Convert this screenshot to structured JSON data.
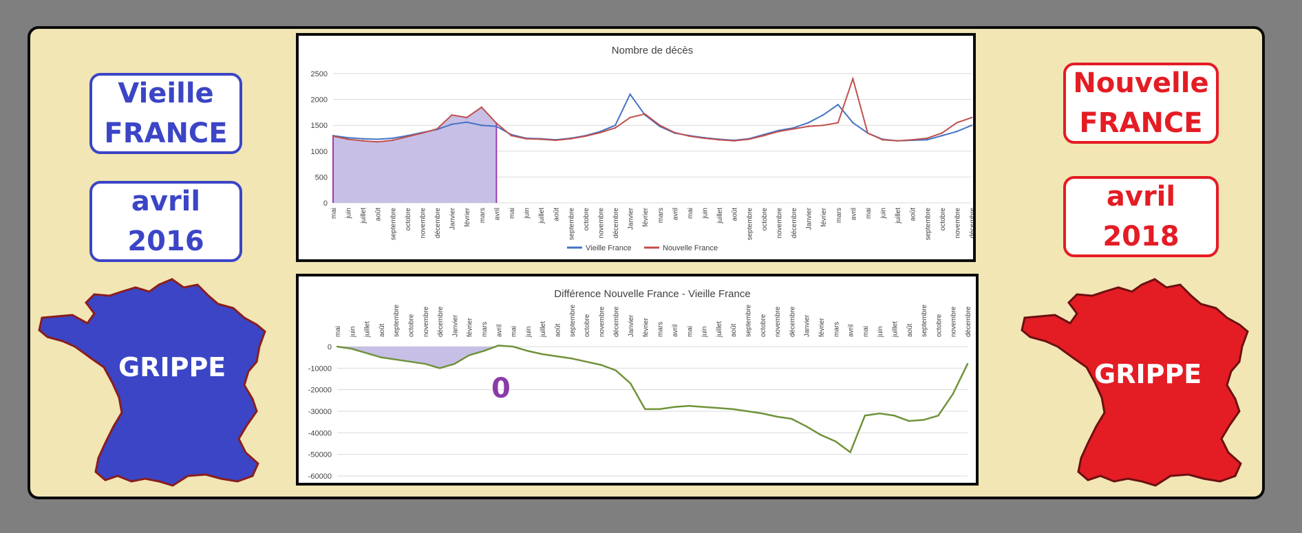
{
  "left_panel": {
    "title_line1": "Vieille",
    "title_line2": "FRANCE",
    "date_line1": "avril",
    "date_line2": "2016",
    "map_label": "GRIPPE"
  },
  "right_panel": {
    "title_line1": "Nouvelle",
    "title_line2": "FRANCE",
    "date_line1": "avril",
    "date_line2": "2018",
    "map_label": "GRIPPE"
  },
  "colors": {
    "background": "#7f7f7f",
    "panel": "#f1e6b4",
    "vieille": "#3b45c6",
    "nouvelle": "#e41c24",
    "series_blue": "#4472c4",
    "series_red": "#c0504d",
    "shade": "#c7bfe6",
    "diff_line": "#70923a",
    "marker": "#9b3bb0"
  },
  "zero_annotation": "0",
  "chart_data": [
    {
      "type": "line",
      "title": "Nombre de décès",
      "xlabel": "",
      "ylabel": "",
      "ylim": [
        0,
        2500
      ],
      "yticks": [
        "0",
        "500",
        "1000",
        "1500",
        "2000",
        "2500"
      ],
      "categories": [
        "mai",
        "juin",
        "juillet",
        "août",
        "septembre",
        "octobre",
        "novembre",
        "décembre",
        "Janvier",
        "février",
        "mars",
        "avril",
        "mai",
        "juin",
        "juillet",
        "août",
        "septembre",
        "octobre",
        "novembre",
        "décembre",
        "Janvier",
        "février",
        "mars",
        "avril",
        "mai",
        "juin",
        "juillet",
        "août",
        "septembre",
        "octobre",
        "novembre",
        "décembre",
        "Janvier",
        "février",
        "mars",
        "avril",
        "mai",
        "juin",
        "juillet",
        "août",
        "septembre",
        "octobre",
        "novembre",
        "décembre"
      ],
      "grid": true,
      "legend_position": "bottom",
      "series": [
        {
          "name": "Vieille France",
          "color": "#4472c4",
          "values": [
            1300,
            1260,
            1240,
            1230,
            1250,
            1300,
            1360,
            1420,
            1520,
            1560,
            1500,
            1480,
            1320,
            1250,
            1240,
            1220,
            1250,
            1300,
            1380,
            1500,
            2100,
            1700,
            1480,
            1350,
            1300,
            1260,
            1230,
            1210,
            1240,
            1320,
            1400,
            1450,
            1550,
            1700,
            1900,
            1550,
            1350,
            1230,
            1200,
            1210,
            1220,
            1300,
            1380,
            1500
          ]
        },
        {
          "name": "Nouvelle France",
          "color": "#c0504d",
          "values": [
            1290,
            1230,
            1200,
            1180,
            1210,
            1280,
            1350,
            1430,
            1700,
            1650,
            1850,
            1540,
            1300,
            1240,
            1230,
            1210,
            1240,
            1290,
            1360,
            1450,
            1650,
            1720,
            1500,
            1360,
            1290,
            1250,
            1220,
            1200,
            1230,
            1300,
            1380,
            1430,
            1480,
            1500,
            1550,
            2400,
            1350,
            1220,
            1200,
            1220,
            1250,
            1350,
            1550,
            1650
          ]
        }
      ],
      "shaded_region": {
        "from": "mai",
        "to": "avril",
        "series": "Nouvelle France"
      }
    },
    {
      "type": "line",
      "title": "Différence Nouvelle France - Vieille France",
      "xlabel": "",
      "ylabel": "",
      "ylim": [
        -60000,
        0
      ],
      "yticks": [
        "0",
        "-10000",
        "-20000",
        "-30000",
        "-40000",
        "-50000",
        "-60000"
      ],
      "categories": [
        "mai",
        "juin",
        "juillet",
        "août",
        "septembre",
        "octobre",
        "novembre",
        "décembre",
        "Janvier",
        "février",
        "mars",
        "avril",
        "mai",
        "juin",
        "juillet",
        "août",
        "septembre",
        "octobre",
        "novembre",
        "décembre",
        "Janvier",
        "février",
        "mars",
        "avril",
        "mai",
        "juin",
        "juillet",
        "août",
        "septembre",
        "octobre",
        "novembre",
        "décembre",
        "Janvier",
        "février",
        "mars",
        "avril",
        "mai",
        "juin",
        "juillet",
        "août",
        "septembre",
        "octobre",
        "novembre",
        "décembre"
      ],
      "grid": true,
      "series": [
        {
          "name": "Différence",
          "color": "#70923a",
          "values": [
            0,
            -1000,
            -3000,
            -5000,
            -6000,
            -7000,
            -8000,
            -10000,
            -8000,
            -4000,
            -2000,
            500,
            0,
            -2000,
            -3500,
            -4500,
            -5500,
            -7000,
            -8500,
            -11000,
            -17000,
            -29000,
            -29000,
            -28000,
            -27500,
            -28000,
            -28500,
            -29000,
            -30000,
            -31000,
            -32500,
            -33500,
            -37000,
            -41000,
            -44000,
            -49000,
            -32000,
            -31000,
            -32000,
            -34500,
            -34000,
            -32000,
            -22000,
            -8000
          ]
        }
      ],
      "shaded_region": {
        "from": "mai",
        "to": "avril"
      }
    }
  ]
}
